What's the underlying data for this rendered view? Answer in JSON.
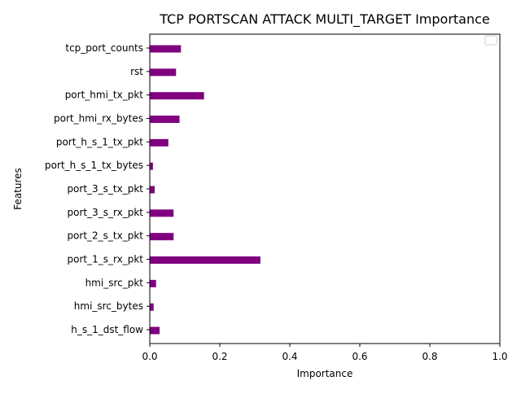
{
  "chart_data": {
    "type": "bar",
    "orientation": "horizontal",
    "title": "TCP PORTSCAN ATTACK MULTI_TARGET Importance",
    "xlabel": "Importance",
    "ylabel": "Features",
    "xlim": [
      0,
      1
    ],
    "xticks": [
      "0.0",
      "0.2",
      "0.4",
      "0.6",
      "0.8",
      "1.0"
    ],
    "categories": [
      "tcp_port_counts",
      "rst",
      "port_hmi_tx_pkt",
      "port_hmi_rx_bytes",
      "port_h_s_1_tx_pkt",
      "port_h_s_1_tx_bytes",
      "port_3_s_tx_pkt",
      "port_3_s_rx_pkt",
      "port_2_s_tx_pkt",
      "port_1_s_rx_pkt",
      "hmi_src_pkt",
      "hmi_src_bytes",
      "h_s_1_dst_flow"
    ],
    "values": [
      0.089,
      0.075,
      0.155,
      0.085,
      0.053,
      0.009,
      0.014,
      0.068,
      0.068,
      0.316,
      0.018,
      0.011,
      0.028
    ],
    "bar_color": "#800080",
    "grid": false,
    "legend_placement": "upper right",
    "legend_empty": true
  }
}
